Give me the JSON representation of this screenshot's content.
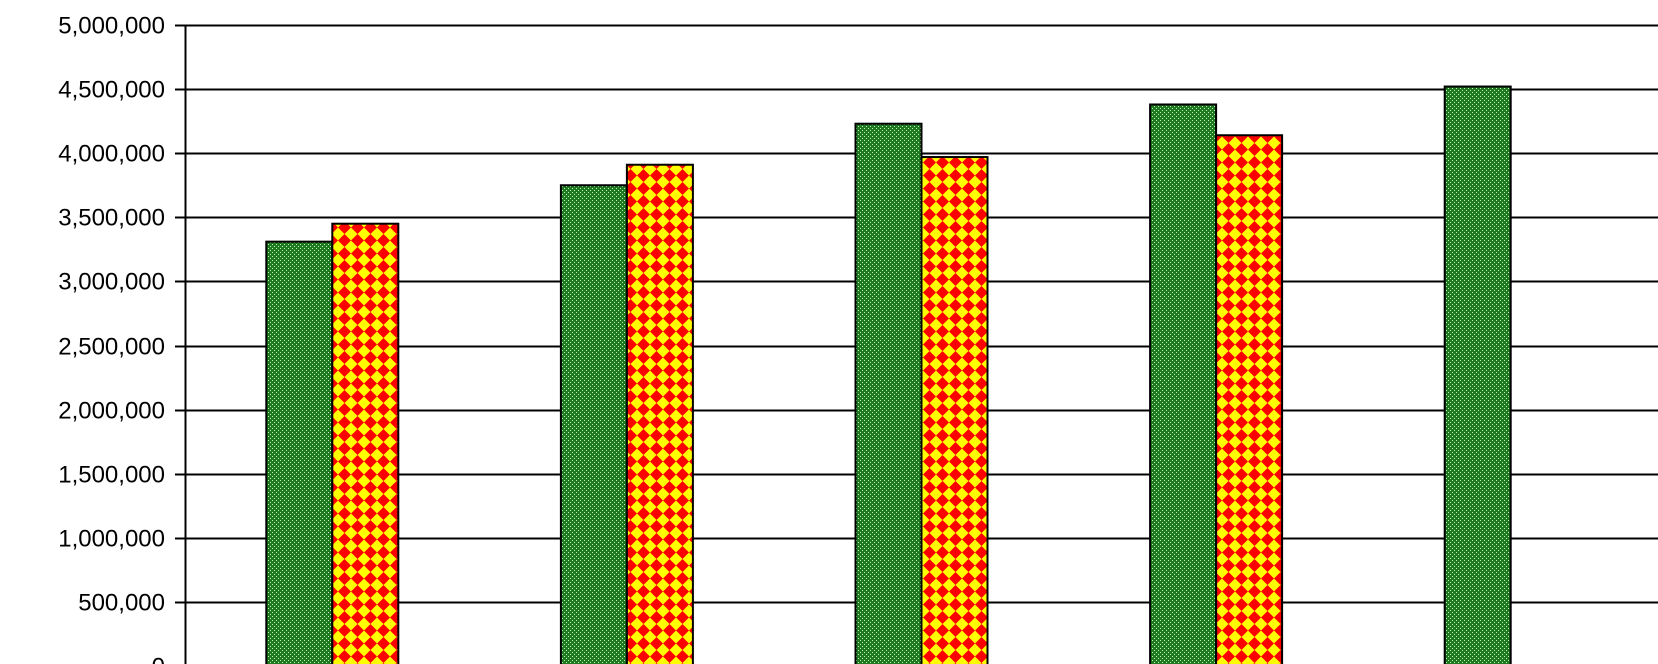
{
  "chart_data": {
    "type": "bar",
    "title": "",
    "xlabel": "",
    "ylabel": "",
    "ylim": [
      0,
      5000000
    ],
    "yticks": [
      0,
      500000,
      1000000,
      1500000,
      2000000,
      2500000,
      3000000,
      3500000,
      4000000,
      4500000,
      5000000
    ],
    "ytick_labels": [
      "0",
      "500,000",
      "1,000,000",
      "1,500,000",
      "2,000,000",
      "2,500,000",
      "3,000,000",
      "3,500,000",
      "4,000,000",
      "4,500,000",
      "5,000,000"
    ],
    "grid": true,
    "legend": "none",
    "categories": [
      "",
      "",
      "",
      "",
      ""
    ],
    "series": [
      {
        "values": [
          3310000,
          3750000,
          4230000,
          4380000,
          4520000
        ],
        "color": "#1e7a1e",
        "pattern": "fine-dots"
      },
      {
        "values": [
          3450000,
          3910000,
          3970000,
          4140000,
          null
        ],
        "color": "#ffff00",
        "pattern_color": "#ff0000",
        "pattern": "diamonds"
      }
    ]
  }
}
